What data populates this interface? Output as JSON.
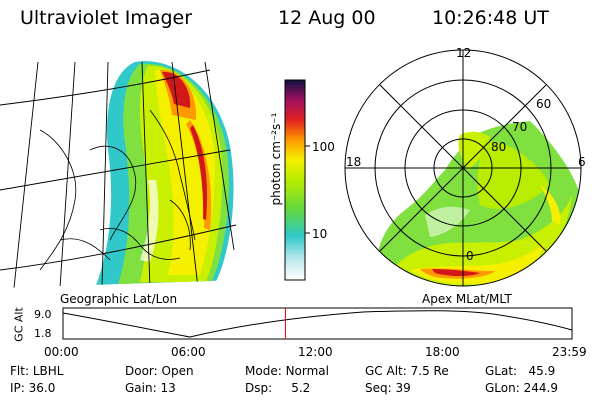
{
  "header": {
    "instrument": "Ultraviolet Imager",
    "date": "12 Aug 00",
    "time": "10:26:48 UT"
  },
  "colorbar": {
    "unit_label": "photon cm⁻²s⁻¹",
    "ticks": [
      "100",
      "10"
    ]
  },
  "geo_panel": {
    "label": "Geographic Lat/Lon"
  },
  "polar_panel": {
    "label": "Apex MLat/MLT",
    "mlt_labels": {
      "top": "12",
      "left": "18",
      "right": "6",
      "bottom": "0"
    },
    "lat_labels": [
      "80",
      "70",
      "60"
    ]
  },
  "altitude_plot": {
    "ylabel": "GC Alt",
    "y_ticks": [
      "9.0",
      "1.8"
    ],
    "x_ticks": [
      "00:00",
      "06:00",
      "12:00",
      "18:00",
      "23:59"
    ],
    "current_time_fraction": 0.437
  },
  "info": {
    "flt_label": "Flt:",
    "flt_value": "LBHL",
    "ip_label": "IP:",
    "ip_value": "36.0",
    "door_label": "Door:",
    "door_value": "Open",
    "gain_label": "Gain:",
    "gain_value": "13",
    "mode_label": "Mode:",
    "mode_value": "Normal",
    "dsp_label": "Dsp:",
    "dsp_value": "5.2",
    "gcalt_label": "GC Alt:",
    "gcalt_value": "7.5 Re",
    "seq_label": "Seq:",
    "seq_value": "39",
    "glat_label": "GLat:",
    "glat_value": "45.9",
    "glon_label": "GLon:",
    "glon_value": "244.9"
  },
  "colors": {
    "marker": "#e00000",
    "aurora_red": "#d01818",
    "aurora_orange": "#ff9900",
    "aurora_yellow": "#f4f000",
    "aurora_green": "#80e040",
    "aurora_cyan": "#30c8c8"
  }
}
